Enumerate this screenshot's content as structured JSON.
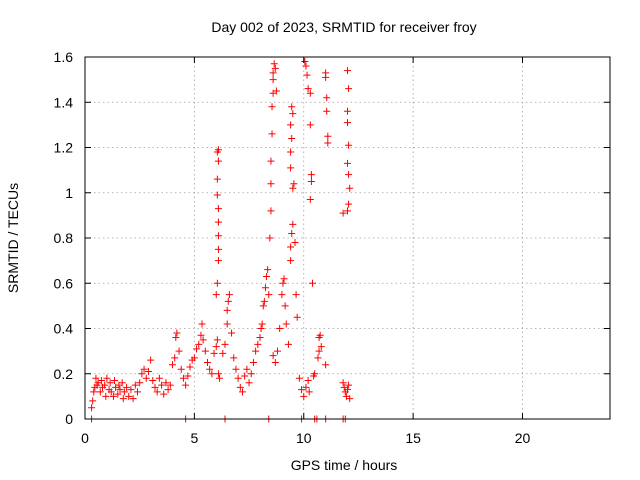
{
  "chart_data": {
    "type": "scatter",
    "title": "Day 002 of 2023, SRMTID for receiver froy",
    "xlabel": "GPS time / hours",
    "ylabel": "SRMTID / TECUs",
    "xlim": [
      0,
      24
    ],
    "ylim": [
      0,
      1.6
    ],
    "xticks": [
      0,
      5,
      10,
      15,
      20
    ],
    "xtick_labels": [
      "0",
      "5",
      "10",
      "15",
      "20"
    ],
    "yticks": [
      0,
      0.2,
      0.4,
      0.6,
      0.8,
      1.0,
      1.2,
      1.4,
      1.6
    ],
    "ytick_labels": [
      "0",
      "0.2",
      "0.4",
      "0.6",
      "0.8",
      "1",
      "1.2",
      "1.4",
      "1.6"
    ],
    "grid": true,
    "marker": "+",
    "marker_color": "#ff0000",
    "series": [
      {
        "name": "SRMTID",
        "points": [
          [
            0.3,
            0.0
          ],
          [
            4.6,
            0.0
          ],
          [
            6.4,
            0.0
          ],
          [
            8.4,
            0.0
          ],
          [
            9.9,
            0.0
          ],
          [
            10.5,
            0.0
          ],
          [
            10.6,
            0.0
          ],
          [
            11.0,
            0.0
          ],
          [
            11.8,
            0.0
          ],
          [
            11.9,
            0.0
          ],
          [
            0.3,
            0.05
          ],
          [
            0.35,
            0.08
          ],
          [
            0.4,
            0.12
          ],
          [
            0.45,
            0.14
          ],
          [
            0.5,
            0.18
          ],
          [
            0.55,
            0.15
          ],
          [
            0.6,
            0.16
          ],
          [
            0.7,
            0.12
          ],
          [
            0.75,
            0.17
          ],
          [
            0.8,
            0.14
          ],
          [
            0.9,
            0.15
          ],
          [
            0.95,
            0.1
          ],
          [
            1.0,
            0.18
          ],
          [
            1.1,
            0.13
          ],
          [
            1.15,
            0.16
          ],
          [
            1.2,
            0.12
          ],
          [
            1.3,
            0.1
          ],
          [
            1.35,
            0.17
          ],
          [
            1.4,
            0.14
          ],
          [
            1.5,
            0.11
          ],
          [
            1.55,
            0.15
          ],
          [
            1.6,
            0.13
          ],
          [
            1.7,
            0.16
          ],
          [
            1.75,
            0.09
          ],
          [
            1.8,
            0.12
          ],
          [
            1.9,
            0.14
          ],
          [
            2.0,
            0.1
          ],
          [
            2.1,
            0.13
          ],
          [
            2.2,
            0.09
          ],
          [
            2.3,
            0.15
          ],
          [
            2.4,
            0.12
          ],
          [
            2.5,
            0.16
          ],
          [
            2.6,
            0.2
          ],
          [
            2.7,
            0.22
          ],
          [
            2.8,
            0.18
          ],
          [
            2.9,
            0.21
          ],
          [
            3.0,
            0.26
          ],
          [
            3.1,
            0.17
          ],
          [
            3.2,
            0.14
          ],
          [
            3.3,
            0.12
          ],
          [
            3.4,
            0.18
          ],
          [
            3.5,
            0.15
          ],
          [
            3.6,
            0.11
          ],
          [
            3.7,
            0.16
          ],
          [
            3.8,
            0.13
          ],
          [
            3.9,
            0.15
          ],
          [
            4.0,
            0.24
          ],
          [
            4.1,
            0.27
          ],
          [
            4.15,
            0.36
          ],
          [
            4.2,
            0.38
          ],
          [
            4.3,
            0.3
          ],
          [
            4.4,
            0.22
          ],
          [
            4.5,
            0.18
          ],
          [
            4.6,
            0.15
          ],
          [
            4.7,
            0.19
          ],
          [
            4.8,
            0.23
          ],
          [
            4.9,
            0.26
          ],
          [
            5.0,
            0.27
          ],
          [
            5.1,
            0.31
          ],
          [
            5.2,
            0.33
          ],
          [
            5.3,
            0.37
          ],
          [
            5.35,
            0.42
          ],
          [
            5.4,
            0.35
          ],
          [
            5.5,
            0.3
          ],
          [
            5.6,
            0.25
          ],
          [
            5.7,
            0.22
          ],
          [
            5.8,
            0.2
          ],
          [
            5.9,
            0.29
          ],
          [
            6.0,
            0.32
          ],
          [
            6.05,
            0.35
          ],
          [
            6.1,
            0.2
          ],
          [
            6.15,
            0.18
          ],
          [
            6.0,
            0.55
          ],
          [
            6.05,
            0.6
          ],
          [
            6.1,
            0.7
          ],
          [
            6.1,
            0.75
          ],
          [
            6.1,
            0.81
          ],
          [
            6.1,
            0.87
          ],
          [
            6.1,
            0.93
          ],
          [
            6.05,
            0.99
          ],
          [
            6.05,
            1.06
          ],
          [
            6.1,
            1.14
          ],
          [
            6.05,
            1.18
          ],
          [
            6.1,
            1.19
          ],
          [
            6.3,
            0.29
          ],
          [
            6.4,
            0.33
          ],
          [
            6.5,
            0.42
          ],
          [
            6.5,
            0.48
          ],
          [
            6.55,
            0.52
          ],
          [
            6.6,
            0.55
          ],
          [
            6.7,
            0.38
          ],
          [
            6.8,
            0.27
          ],
          [
            6.9,
            0.22
          ],
          [
            7.0,
            0.18
          ],
          [
            7.1,
            0.14
          ],
          [
            7.2,
            0.12
          ],
          [
            7.3,
            0.19
          ],
          [
            7.4,
            0.22
          ],
          [
            7.5,
            0.16
          ],
          [
            7.6,
            0.2
          ],
          [
            7.7,
            0.25
          ],
          [
            7.8,
            0.3
          ],
          [
            7.9,
            0.33
          ],
          [
            8.0,
            0.36
          ],
          [
            8.05,
            0.4
          ],
          [
            8.1,
            0.42
          ],
          [
            8.15,
            0.5
          ],
          [
            8.2,
            0.52
          ],
          [
            8.25,
            0.58
          ],
          [
            8.3,
            0.63
          ],
          [
            8.35,
            0.66
          ],
          [
            8.4,
            0.55
          ],
          [
            8.45,
            0.8
          ],
          [
            8.5,
            0.92
          ],
          [
            8.5,
            1.04
          ],
          [
            8.5,
            1.14
          ],
          [
            8.55,
            1.26
          ],
          [
            8.55,
            1.38
          ],
          [
            8.6,
            1.44
          ],
          [
            8.6,
            1.5
          ],
          [
            8.6,
            1.53
          ],
          [
            8.65,
            1.57
          ],
          [
            8.7,
            1.55
          ],
          [
            8.75,
            1.45
          ],
          [
            8.6,
            0.28
          ],
          [
            8.7,
            0.25
          ],
          [
            8.8,
            0.3
          ],
          [
            8.9,
            0.4
          ],
          [
            9.0,
            0.55
          ],
          [
            9.05,
            0.6
          ],
          [
            9.1,
            0.62
          ],
          [
            9.15,
            0.5
          ],
          [
            9.2,
            0.42
          ],
          [
            9.3,
            0.33
          ],
          [
            9.4,
            0.7
          ],
          [
            9.4,
            0.76
          ],
          [
            9.45,
            0.82
          ],
          [
            9.5,
            1.02
          ],
          [
            9.55,
            1.04
          ],
          [
            9.4,
            1.11
          ],
          [
            9.4,
            1.18
          ],
          [
            9.45,
            1.24
          ],
          [
            9.4,
            1.3
          ],
          [
            9.5,
            1.35
          ],
          [
            9.45,
            1.38
          ],
          [
            9.5,
            0.86
          ],
          [
            9.6,
            0.78
          ],
          [
            9.65,
            0.55
          ],
          [
            9.7,
            0.45
          ],
          [
            9.8,
            0.18
          ],
          [
            9.9,
            0.13
          ],
          [
            10.0,
            0.1
          ],
          [
            10.1,
            0.14
          ],
          [
            10.2,
            0.17
          ],
          [
            10.25,
            0.12
          ],
          [
            10.05,
            1.58
          ],
          [
            10.1,
            1.56
          ],
          [
            10.15,
            1.52
          ],
          [
            10.2,
            1.46
          ],
          [
            10.3,
            1.44
          ],
          [
            10.3,
            1.3
          ],
          [
            10.35,
            1.08
          ],
          [
            10.35,
            1.05
          ],
          [
            10.3,
            0.97
          ],
          [
            10.4,
            0.6
          ],
          [
            10.45,
            0.19
          ],
          [
            10.5,
            0.2
          ],
          [
            10.7,
            0.36
          ],
          [
            10.75,
            0.37
          ],
          [
            10.8,
            0.32
          ],
          [
            10.65,
            0.27
          ],
          [
            10.7,
            0.3
          ],
          [
            11.0,
            0.24
          ],
          [
            11.0,
            1.53
          ],
          [
            11.0,
            1.51
          ],
          [
            11.05,
            1.42
          ],
          [
            11.05,
            1.36
          ],
          [
            11.1,
            1.25
          ],
          [
            11.1,
            1.22
          ],
          [
            11.8,
            0.16
          ],
          [
            11.85,
            0.14
          ],
          [
            11.9,
            0.12
          ],
          [
            11.95,
            0.1
          ],
          [
            12.0,
            0.13
          ],
          [
            12.05,
            0.15
          ],
          [
            12.1,
            0.09
          ],
          [
            11.8,
            0.91
          ],
          [
            12.0,
            0.92
          ],
          [
            12.05,
            0.95
          ],
          [
            12.1,
            1.02
          ],
          [
            12.05,
            1.08
          ],
          [
            12.0,
            1.13
          ],
          [
            12.05,
            1.21
          ],
          [
            12.0,
            1.31
          ],
          [
            12.0,
            1.36
          ],
          [
            12.05,
            1.46
          ],
          [
            12.0,
            1.54
          ]
        ]
      }
    ]
  }
}
